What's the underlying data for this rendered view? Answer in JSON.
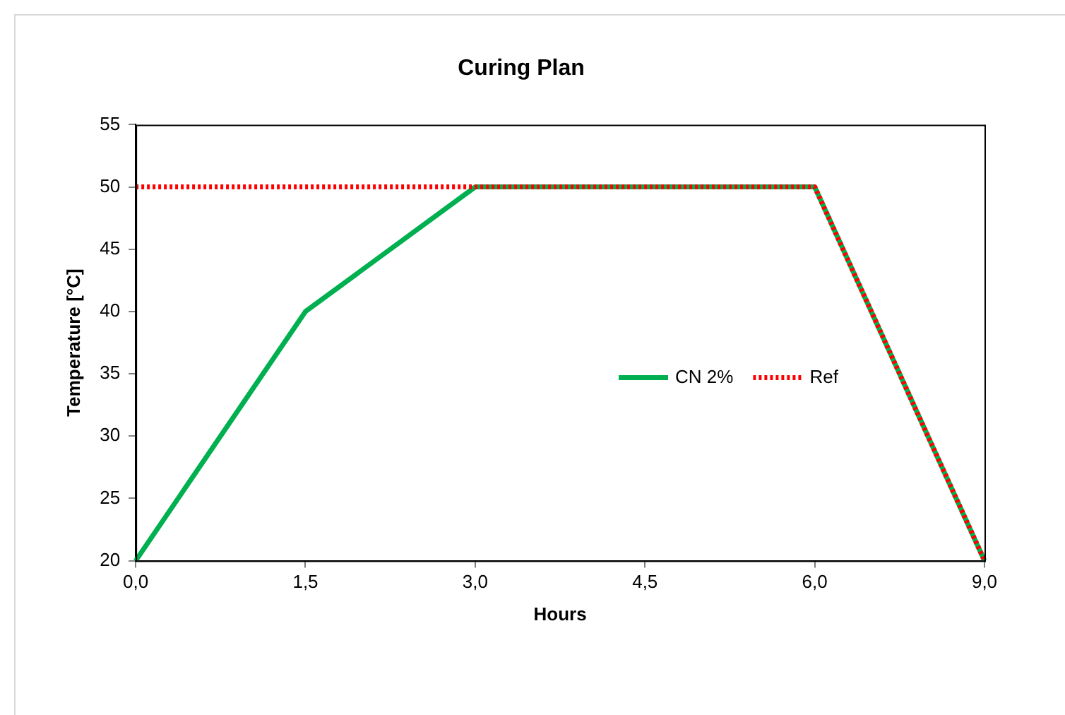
{
  "chart_data": {
    "type": "line",
    "title": "Curing Plan",
    "xlabel": "Hours",
    "ylabel": "Temperature [°C]",
    "categories": [
      "0,0",
      "1,5",
      "3,0",
      "4,5",
      "6,0",
      "9,0"
    ],
    "series": [
      {
        "name": "CN 2%",
        "color": "#00b050",
        "values": [
          20,
          40,
          50,
          50,
          50,
          20
        ],
        "line_style": "solid"
      },
      {
        "name": "Ref",
        "color": "#ff0000",
        "values": [
          50,
          50,
          50,
          50,
          50,
          20
        ],
        "line_style": "dotted"
      }
    ],
    "ylim": [
      20,
      55
    ],
    "yticks": [
      20,
      25,
      30,
      35,
      40,
      45,
      50,
      55
    ],
    "grid": false,
    "legend": "right",
    "marker": "none"
  }
}
